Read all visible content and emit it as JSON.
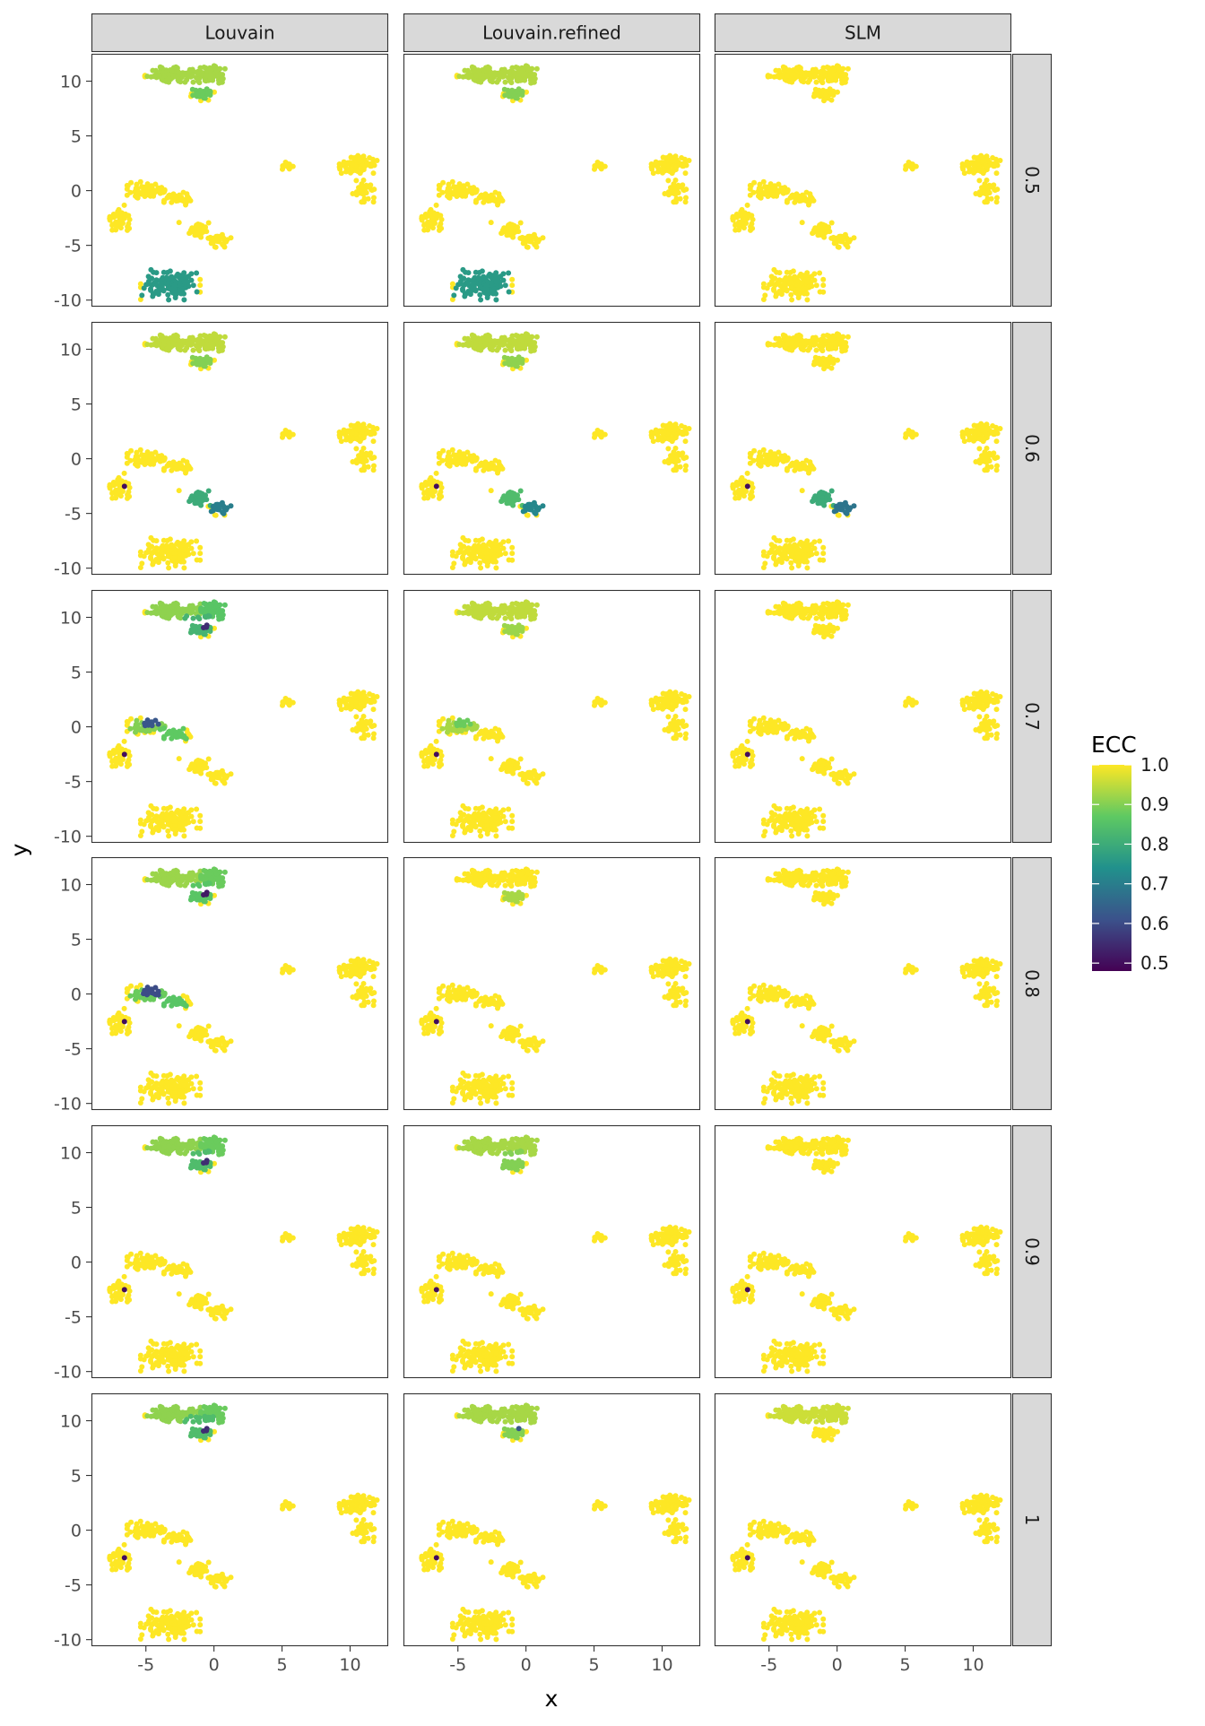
{
  "chart_data": {
    "type": "scatter",
    "title": "",
    "xlabel": "x",
    "ylabel": "y",
    "facet_columns": [
      "Louvain",
      "Louvain.refined",
      "SLM"
    ],
    "facet_rows": [
      "0.5",
      "0.6",
      "0.7",
      "0.8",
      "0.9",
      "1"
    ],
    "xlim": [
      -9,
      12.8
    ],
    "ylim": [
      -10.6,
      12.5
    ],
    "x_ticks": [
      -5,
      0,
      5,
      10
    ],
    "x_tick_labels": [
      "-5",
      "0",
      "5",
      "10"
    ],
    "y_ticks": [
      -10,
      -5,
      0,
      5,
      10
    ],
    "y_tick_labels": [
      "-10",
      "-5",
      "0",
      "5",
      "10"
    ],
    "grid": false,
    "legend": {
      "title": "ECC",
      "placement": "right",
      "range": [
        0.48,
        1.0
      ],
      "ticks": [
        0.5,
        0.6,
        0.7,
        0.8,
        0.9,
        1.0
      ],
      "tick_labels": [
        "0.5",
        "0.6",
        "0.7",
        "0.8",
        "0.9",
        "1.0"
      ],
      "palette": [
        "#440154",
        "#3b528b",
        "#21918c",
        "#5ec962",
        "#fde725"
      ]
    },
    "default_point_color": "#fde725",
    "clusters": [
      {
        "id": "top-left",
        "cx": -3.0,
        "cy": 10.6,
        "rx": 1.8,
        "ry": 0.6,
        "n": 110
      },
      {
        "id": "top-right",
        "cx": -0.2,
        "cy": 10.6,
        "rx": 1.2,
        "ry": 0.7,
        "n": 80
      },
      {
        "id": "top-bottom",
        "cx": -0.9,
        "cy": 8.8,
        "rx": 0.8,
        "ry": 0.5,
        "n": 35
      },
      {
        "id": "mid-left",
        "cx": -5.0,
        "cy": 0.0,
        "rx": 1.2,
        "ry": 0.7,
        "n": 55
      },
      {
        "id": "mid-right",
        "cx": -2.7,
        "cy": -0.7,
        "rx": 1.1,
        "ry": 0.6,
        "n": 45
      },
      {
        "id": "left-arm",
        "cx": -7.0,
        "cy": -2.6,
        "rx": 0.7,
        "ry": 1.1,
        "n": 45
      },
      {
        "id": "right-arm-upper",
        "cx": -1.3,
        "cy": -3.6,
        "rx": 1.1,
        "ry": 0.6,
        "n": 35
      },
      {
        "id": "right-arm-lower",
        "cx": 0.5,
        "cy": -4.6,
        "rx": 0.8,
        "ry": 0.5,
        "n": 30
      },
      {
        "id": "bottom",
        "cx": -3.2,
        "cy": -8.6,
        "rx": 1.9,
        "ry": 1.2,
        "n": 130
      },
      {
        "id": "small",
        "cx": 5.4,
        "cy": 2.3,
        "rx": 0.35,
        "ry": 0.3,
        "n": 16
      },
      {
        "id": "right-upper",
        "cx": 10.6,
        "cy": 2.4,
        "rx": 1.2,
        "ry": 0.7,
        "n": 70
      },
      {
        "id": "right-lower",
        "cx": 11.0,
        "cy": 0.0,
        "rx": 0.7,
        "ry": 0.9,
        "n": 35
      }
    ],
    "panels": [
      {
        "row": "0.5",
        "col": "Louvain",
        "regions": [
          {
            "x": [
              -5,
              1.5
            ],
            "y": [
              9.7,
              11.5
            ],
            "value": 0.93
          },
          {
            "x": [
              -1.6,
              -0.2
            ],
            "y": [
              8.3,
              9.6
            ],
            "value": 0.88
          },
          {
            "x": [
              -0.9,
              -0.6
            ],
            "y": [
              9.2,
              9.6
            ],
            "value": 0.55
          },
          {
            "x": [
              -5.3,
              -1.1
            ],
            "y": [
              -10.2,
              -6.7
            ],
            "value": 0.76
          }
        ]
      },
      {
        "row": "0.5",
        "col": "Louvain.refined",
        "regions": [
          {
            "x": [
              -5,
              1.5
            ],
            "y": [
              9.7,
              11.5
            ],
            "value": 0.94
          },
          {
            "x": [
              -1.6,
              -0.2
            ],
            "y": [
              8.3,
              9.6
            ],
            "value": 0.9
          },
          {
            "x": [
              -1.0,
              -0.6
            ],
            "y": [
              9.1,
              9.7
            ],
            "value": 0.5
          },
          {
            "x": [
              -5.3,
              -1.1
            ],
            "y": [
              -10.2,
              -6.7
            ],
            "value": 0.76
          }
        ]
      },
      {
        "row": "0.5",
        "col": "SLM",
        "regions": [
          {
            "x": [
              -1.0,
              -0.7
            ],
            "y": [
              9.2,
              9.6
            ],
            "value": 0.88
          }
        ]
      },
      {
        "row": "0.6",
        "col": "Louvain",
        "regions": [
          {
            "x": [
              -5,
              1.5
            ],
            "y": [
              9.7,
              11.5
            ],
            "value": 0.95
          },
          {
            "x": [
              -1.6,
              -0.2
            ],
            "y": [
              8.3,
              9.3
            ],
            "value": 0.9
          },
          {
            "x": [
              -1.0,
              -0.6
            ],
            "y": [
              9.3,
              9.6
            ],
            "value": 0.72
          },
          {
            "x": [
              -2.5,
              -0.2
            ],
            "y": [
              -4.3,
              -2.9
            ],
            "value": 0.8
          },
          {
            "x": [
              -0.2,
              1.4
            ],
            "y": [
              -5.1,
              -3.5
            ],
            "value": 0.7
          },
          {
            "x": [
              -6.7,
              -6.4
            ],
            "y": [
              -2.8,
              -2.4
            ],
            "value": 0.5
          }
        ]
      },
      {
        "row": "0.6",
        "col": "Louvain.refined",
        "regions": [
          {
            "x": [
              -5,
              1.5
            ],
            "y": [
              9.7,
              11.5
            ],
            "value": 0.95
          },
          {
            "x": [
              -1.6,
              -0.2
            ],
            "y": [
              8.3,
              9.3
            ],
            "value": 0.91
          },
          {
            "x": [
              -1.0,
              -0.6
            ],
            "y": [
              9.3,
              9.6
            ],
            "value": 0.72
          },
          {
            "x": [
              -2.5,
              -0.2
            ],
            "y": [
              -4.3,
              -2.9
            ],
            "value": 0.84
          },
          {
            "x": [
              -0.2,
              1.4
            ],
            "y": [
              -5.1,
              -3.5
            ],
            "value": 0.72
          },
          {
            "x": [
              -6.7,
              -6.4
            ],
            "y": [
              -2.8,
              -2.4
            ],
            "value": 0.5
          }
        ]
      },
      {
        "row": "0.6",
        "col": "SLM",
        "regions": [
          {
            "x": [
              -2.5,
              -0.2
            ],
            "y": [
              -4.3,
              -2.9
            ],
            "value": 0.8
          },
          {
            "x": [
              -0.2,
              1.4
            ],
            "y": [
              -5.1,
              -3.5
            ],
            "value": 0.68
          },
          {
            "x": [
              -6.7,
              -6.4
            ],
            "y": [
              -2.8,
              -2.4
            ],
            "value": 0.5
          }
        ]
      },
      {
        "row": "0.7",
        "col": "Louvain",
        "regions": [
          {
            "x": [
              -5,
              -1.0
            ],
            "y": [
              9.7,
              11.5
            ],
            "value": 0.91
          },
          {
            "x": [
              -1.0,
              1.5
            ],
            "y": [
              9.7,
              11.5
            ],
            "value": 0.86
          },
          {
            "x": [
              -2.2,
              -0.2
            ],
            "y": [
              8.4,
              10.2
            ],
            "value": 0.82
          },
          {
            "x": [
              -1.0,
              -0.5
            ],
            "y": [
              9.0,
              9.8
            ],
            "value": 0.55
          },
          {
            "x": [
              -6.2,
              -3.6
            ],
            "y": [
              -0.5,
              0.6
            ],
            "value": 0.9
          },
          {
            "x": [
              -4.2,
              -2.0
            ],
            "y": [
              -1.2,
              -0.1
            ],
            "value": 0.87
          },
          {
            "x": [
              -5.2,
              -4.0
            ],
            "y": [
              0.1,
              1.3
            ],
            "value": 0.62
          },
          {
            "x": [
              -6.7,
              -6.4
            ],
            "y": [
              -2.8,
              -2.4
            ],
            "value": 0.5
          }
        ]
      },
      {
        "row": "0.7",
        "col": "Louvain.refined",
        "regions": [
          {
            "x": [
              -5,
              1.5
            ],
            "y": [
              9.7,
              11.5
            ],
            "value": 0.95
          },
          {
            "x": [
              -1.6,
              -0.2
            ],
            "y": [
              8.3,
              9.3
            ],
            "value": 0.92
          },
          {
            "x": [
              -1.0,
              -0.6
            ],
            "y": [
              9.2,
              9.6
            ],
            "value": 0.7
          },
          {
            "x": [
              -6.2,
              -3.6
            ],
            "y": [
              -0.5,
              0.6
            ],
            "value": 0.93
          },
          {
            "x": [
              -5.2,
              -4.0
            ],
            "y": [
              0.1,
              1.3
            ],
            "value": 0.88
          },
          {
            "x": [
              -6.7,
              -6.4
            ],
            "y": [
              -2.8,
              -2.4
            ],
            "value": 0.5
          }
        ]
      },
      {
        "row": "0.7",
        "col": "SLM",
        "regions": [
          {
            "x": [
              -1.0,
              -0.7
            ],
            "y": [
              9.2,
              9.6
            ],
            "value": 0.93
          },
          {
            "x": [
              -6.7,
              -6.4
            ],
            "y": [
              -2.8,
              -2.4
            ],
            "value": 0.5
          }
        ]
      },
      {
        "row": "0.8",
        "col": "Louvain",
        "regions": [
          {
            "x": [
              -5,
              -1.0
            ],
            "y": [
              9.7,
              11.5
            ],
            "value": 0.92
          },
          {
            "x": [
              -1.0,
              1.5
            ],
            "y": [
              9.7,
              11.5
            ],
            "value": 0.88
          },
          {
            "x": [
              -2.0,
              -0.2
            ],
            "y": [
              8.4,
              10.2
            ],
            "value": 0.86
          },
          {
            "x": [
              -1.0,
              -0.5
            ],
            "y": [
              9.0,
              9.6
            ],
            "value": 0.52
          },
          {
            "x": [
              -6.2,
              -3.6
            ],
            "y": [
              -0.6,
              0.4
            ],
            "value": 0.88
          },
          {
            "x": [
              -4.2,
              -2.0
            ],
            "y": [
              -1.2,
              -0.2
            ],
            "value": 0.86
          },
          {
            "x": [
              -5.2,
              -4.0
            ],
            "y": [
              -0.1,
              1.1
            ],
            "value": 0.6
          },
          {
            "x": [
              -6.7,
              -6.4
            ],
            "y": [
              -2.8,
              -2.4
            ],
            "value": 0.5
          }
        ]
      },
      {
        "row": "0.8",
        "col": "Louvain.refined",
        "regions": [
          {
            "x": [
              -1.6,
              -0.2
            ],
            "y": [
              8.3,
              9.3
            ],
            "value": 0.93
          },
          {
            "x": [
              -1.0,
              -0.6
            ],
            "y": [
              9.2,
              9.6
            ],
            "value": 0.62
          },
          {
            "x": [
              -6.7,
              -6.4
            ],
            "y": [
              -2.8,
              -2.4
            ],
            "value": 0.5
          }
        ]
      },
      {
        "row": "0.8",
        "col": "SLM",
        "regions": [
          {
            "x": [
              -1.0,
              -0.6
            ],
            "y": [
              9.2,
              9.6
            ],
            "value": 0.86
          },
          {
            "x": [
              -6.7,
              -6.4
            ],
            "y": [
              -2.8,
              -2.4
            ],
            "value": 0.5
          }
        ]
      },
      {
        "row": "0.9",
        "col": "Louvain",
        "regions": [
          {
            "x": [
              -5,
              -1.0
            ],
            "y": [
              9.7,
              11.5
            ],
            "value": 0.91
          },
          {
            "x": [
              -1.0,
              1.5
            ],
            "y": [
              9.7,
              11.5
            ],
            "value": 0.88
          },
          {
            "x": [
              -2.0,
              -0.2
            ],
            "y": [
              8.4,
              10.2
            ],
            "value": 0.84
          },
          {
            "x": [
              -1.0,
              -0.4
            ],
            "y": [
              9.0,
              9.6
            ],
            "value": 0.55
          },
          {
            "x": [
              -6.7,
              -6.4
            ],
            "y": [
              -2.8,
              -2.4
            ],
            "value": 0.5
          }
        ]
      },
      {
        "row": "0.9",
        "col": "Louvain.refined",
        "regions": [
          {
            "x": [
              -5,
              1.5
            ],
            "y": [
              9.7,
              11.5
            ],
            "value": 0.93
          },
          {
            "x": [
              -1.8,
              -0.2
            ],
            "y": [
              8.4,
              10.2
            ],
            "value": 0.9
          },
          {
            "x": [
              -1.0,
              -0.6
            ],
            "y": [
              9.2,
              9.6
            ],
            "value": 0.62
          },
          {
            "x": [
              -6.7,
              -6.4
            ],
            "y": [
              -2.8,
              -2.4
            ],
            "value": 0.5
          }
        ]
      },
      {
        "row": "0.9",
        "col": "SLM",
        "regions": [
          {
            "x": [
              -1.0,
              -0.6
            ],
            "y": [
              9.2,
              9.6
            ],
            "value": 0.76
          },
          {
            "x": [
              -6.7,
              -6.4
            ],
            "y": [
              -2.8,
              -2.4
            ],
            "value": 0.5
          }
        ]
      },
      {
        "row": "1",
        "col": "Louvain",
        "regions": [
          {
            "x": [
              -5,
              -1.0
            ],
            "y": [
              9.7,
              11.5
            ],
            "value": 0.91
          },
          {
            "x": [
              -1.0,
              1.5
            ],
            "y": [
              9.7,
              11.5
            ],
            "value": 0.88
          },
          {
            "x": [
              -2.2,
              0.0
            ],
            "y": [
              8.4,
              10.4
            ],
            "value": 0.84
          },
          {
            "x": [
              -1.0,
              -0.4
            ],
            "y": [
              9.0,
              9.7
            ],
            "value": 0.55
          },
          {
            "x": [
              -6.7,
              -6.4
            ],
            "y": [
              -2.8,
              -2.4
            ],
            "value": 0.5
          }
        ]
      },
      {
        "row": "1",
        "col": "Louvain.refined",
        "regions": [
          {
            "x": [
              -5,
              1.5
            ],
            "y": [
              9.7,
              11.5
            ],
            "value": 0.93
          },
          {
            "x": [
              -1.6,
              -0.2
            ],
            "y": [
              8.4,
              9.6
            ],
            "value": 0.9
          },
          {
            "x": [
              -1.0,
              -0.5
            ],
            "y": [
              9.1,
              9.7
            ],
            "value": 0.62
          },
          {
            "x": [
              -6.7,
              -6.4
            ],
            "y": [
              -2.8,
              -2.4
            ],
            "value": 0.5
          }
        ]
      },
      {
        "row": "1",
        "col": "SLM",
        "regions": [
          {
            "x": [
              -5,
              1.5
            ],
            "y": [
              9.7,
              11.5
            ],
            "value": 0.96
          },
          {
            "x": [
              -1.0,
              -0.6
            ],
            "y": [
              9.2,
              9.6
            ],
            "value": 0.66
          },
          {
            "x": [
              -6.7,
              -6.4
            ],
            "y": [
              -2.8,
              -2.4
            ],
            "value": 0.5
          }
        ]
      }
    ]
  }
}
